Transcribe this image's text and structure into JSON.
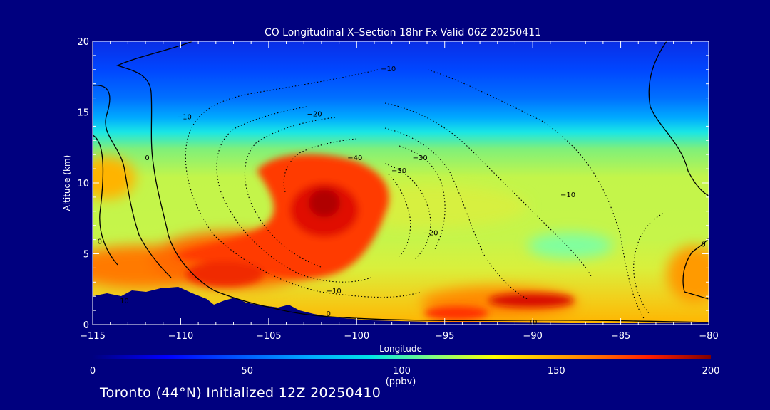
{
  "chart_data": {
    "type": "heatmap",
    "title": "CO Longitudinal X–Section 18hr  Fx Valid 06Z 20250411",
    "xlabel": "Longitude",
    "ylabel": "Altitude (km)",
    "xlim": [
      -115,
      -80
    ],
    "ylim": [
      0,
      20
    ],
    "x_ticks": [
      -115,
      -110,
      -105,
      -100,
      -95,
      -90,
      -85,
      -80
    ],
    "x_tick_labels": [
      "−115",
      "−110",
      "−105",
      "−100",
      "−95",
      "−90",
      "−85",
      "−80"
    ],
    "y_ticks": [
      0,
      5,
      10,
      15,
      20
    ],
    "y_tick_labels": [
      "0",
      "5",
      "10",
      "15",
      "20"
    ],
    "colorbar": {
      "min": 0,
      "max": 200,
      "ticks": [
        0,
        50,
        100,
        150,
        200
      ],
      "tick_labels": [
        "0",
        "50",
        "100",
        "150",
        "200"
      ],
      "unit": "(ppbv)"
    },
    "contour_labels": [
      {
        "text": "−10",
        "x": -98.2,
        "y": 18.1
      },
      {
        "text": "−10",
        "x": -109.8,
        "y": 14.7
      },
      {
        "text": "−20",
        "x": -102.4,
        "y": 14.9
      },
      {
        "text": "−30",
        "x": -96.4,
        "y": 11.8
      },
      {
        "text": "−40",
        "x": -100.1,
        "y": 11.8
      },
      {
        "text": "−50",
        "x": -97.6,
        "y": 10.9
      },
      {
        "text": "−20",
        "x": -95.8,
        "y": 6.5
      },
      {
        "text": "−10",
        "x": -88.0,
        "y": 9.2
      },
      {
        "text": "−10",
        "x": -101.3,
        "y": 2.4
      },
      {
        "text": "0",
        "x": -111.9,
        "y": 11.8
      },
      {
        "text": "0",
        "x": -114.6,
        "y": 5.9
      },
      {
        "text": "0",
        "x": -101.6,
        "y": 0.8
      },
      {
        "text": "0",
        "x": -80.3,
        "y": 5.7
      },
      {
        "text": "10",
        "x": -113.2,
        "y": 1.7
      },
      {
        "text": "10",
        "x": -90.0,
        "y": 0.2
      }
    ]
  },
  "caption": "Toronto (44°N) Initialized 12Z 20250410"
}
